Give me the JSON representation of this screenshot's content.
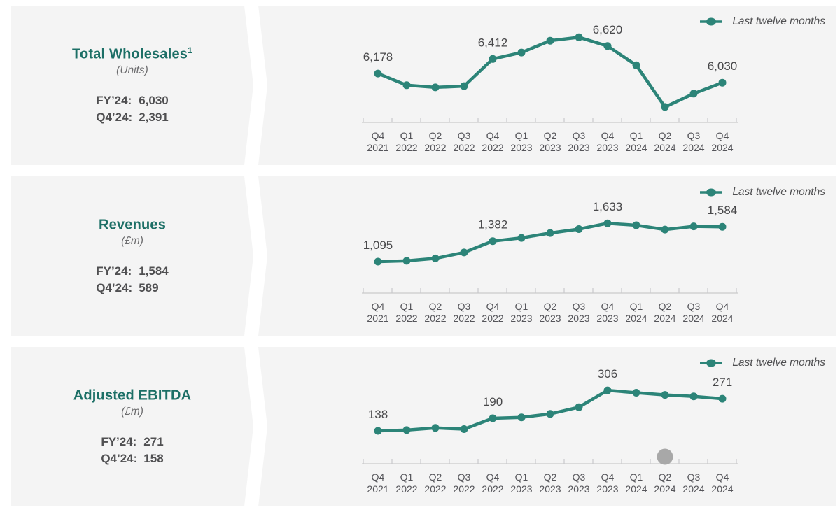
{
  "colors": {
    "page_bg": "#FFFFFF",
    "panel_bg": "#F4F4F4",
    "heading_teal": "#1C6F66",
    "line_teal": "#2C8478",
    "text_dark": "#4F4F51",
    "text_gray": "#6C6C6E",
    "data_label": "#48484A",
    "axis_line": "#C9C9CB",
    "axis_label": "#55555A",
    "gray_dot": "#A8A8A8"
  },
  "panels": [
    {
      "title": "Total Wholesales",
      "title_sup": "1",
      "subtitle": "(Units)",
      "fy_label": "FY’24:",
      "fy_value": "6,030",
      "q4_label": "Q4’24:",
      "q4_value": "2,391"
    },
    {
      "title": "Revenues",
      "title_sup": "",
      "subtitle": "(£m)",
      "fy_label": "FY’24:",
      "fy_value": "1,584",
      "q4_label": "Q4’24:",
      "q4_value": "589"
    },
    {
      "title": "Adjusted EBITDA",
      "title_sup": "",
      "subtitle": "(£m)",
      "fy_label": "FY’24:",
      "fy_value": "271",
      "q4_label": "Q4’24:",
      "q4_value": "158"
    }
  ],
  "chart_data": [
    {
      "type": "line",
      "title": "Total Wholesales (Units) — last twelve months",
      "legend": "Last twelve months",
      "legend_position": "top-right",
      "grid": false,
      "categories": [
        "Q4 2021",
        "Q1 2022",
        "Q2 2022",
        "Q3 2022",
        "Q4 2022",
        "Q1 2023",
        "Q2 2023",
        "Q3 2023",
        "Q4 2023",
        "Q1 2024",
        "Q2 2024",
        "Q3 2024",
        "Q4 2024"
      ],
      "series": [
        {
          "name": "Last twelve months",
          "values": [
            6178,
            5990,
            5955,
            5975,
            6412,
            6515,
            6705,
            6760,
            6620,
            6310,
            5640,
            5855,
            6030
          ]
        }
      ],
      "point_labels": [
        {
          "index": 0,
          "text": "6,178"
        },
        {
          "index": 4,
          "text": "6,412"
        },
        {
          "index": 8,
          "text": "6,620"
        },
        {
          "index": 12,
          "text": "6,030"
        }
      ],
      "ylim": [
        5560,
        6820
      ]
    },
    {
      "type": "line",
      "title": "Revenues (£m) — last twelve months",
      "legend": "Last twelve months",
      "legend_position": "top-right",
      "grid": false,
      "categories": [
        "Q4 2021",
        "Q1 2022",
        "Q2 2022",
        "Q3 2022",
        "Q4 2022",
        "Q1 2023",
        "Q2 2023",
        "Q3 2023",
        "Q4 2023",
        "Q1 2024",
        "Q2 2024",
        "Q3 2024",
        "Q4 2024"
      ],
      "series": [
        {
          "name": "Last twelve months",
          "values": [
            1095,
            1105,
            1140,
            1223,
            1382,
            1428,
            1496,
            1551,
            1633,
            1605,
            1545,
            1590,
            1584
          ]
        }
      ],
      "point_labels": [
        {
          "index": 0,
          "text": "1,095"
        },
        {
          "index": 4,
          "text": "1,382"
        },
        {
          "index": 8,
          "text": "1,633"
        },
        {
          "index": 12,
          "text": "1,584"
        }
      ],
      "ylim": [
        800,
        1900
      ]
    },
    {
      "type": "line",
      "title": "Adjusted EBITDA (£m) — last twelve months",
      "legend": "Last twelve months",
      "legend_position": "top-right",
      "grid": false,
      "categories": [
        "Q4 2021",
        "Q1 2022",
        "Q2 2022",
        "Q3 2022",
        "Q4 2022",
        "Q1 2023",
        "Q2 2023",
        "Q3 2023",
        "Q4 2023",
        "Q1 2024",
        "Q2 2024",
        "Q3 2024",
        "Q4 2024"
      ],
      "series": [
        {
          "name": "Last twelve months",
          "values": [
            138,
            141,
            150,
            145,
            190,
            194,
            208,
            236,
            306,
            296,
            287,
            281,
            271
          ]
        }
      ],
      "point_labels": [
        {
          "index": 0,
          "text": "138"
        },
        {
          "index": 4,
          "text": "190"
        },
        {
          "index": 8,
          "text": "306"
        },
        {
          "index": 12,
          "text": "271"
        }
      ],
      "ylim": [
        45,
        370
      ],
      "marker_dot": {
        "category": "Q2 2024",
        "index": 10,
        "color": "#A8A8A8"
      }
    }
  ]
}
